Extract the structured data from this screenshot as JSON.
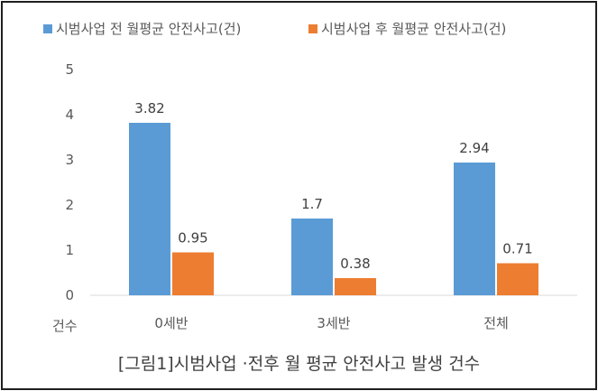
{
  "caption": "[그림1]시범사업 ·전후 월 평균 안전사고 발생 건수",
  "chart_data": {
    "type": "bar",
    "categories": [
      "0세반",
      "3세반",
      "전체"
    ],
    "series": [
      {
        "name": "시범사업 전 월평균 안전사고(건)",
        "values": [
          3.82,
          1.7,
          2.94
        ],
        "color": "#5b9bd5"
      },
      {
        "name": "시범사업 후 월평균 안전사고(건)",
        "values": [
          0.95,
          0.38,
          0.71
        ],
        "color": "#ed7d31"
      }
    ],
    "ylabel": "건수",
    "ylim": [
      0,
      5
    ],
    "yticks": [
      0,
      1,
      2,
      3,
      4,
      5
    ],
    "grid": false,
    "legend": "top"
  }
}
